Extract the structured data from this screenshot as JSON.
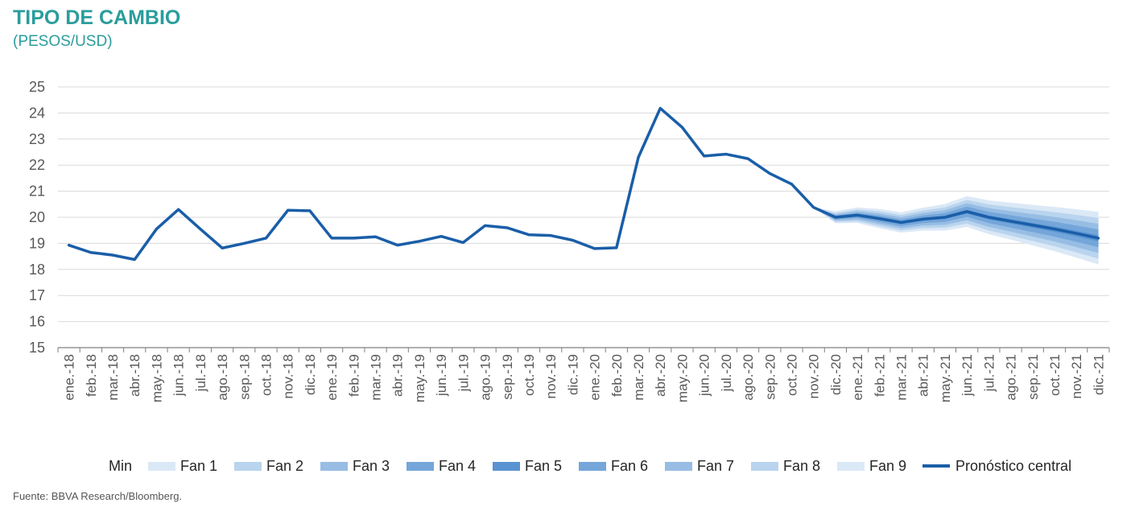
{
  "header": {
    "title": "TIPO DE CAMBIO",
    "subtitle": "(PESOS/USD)"
  },
  "footer": {
    "source": "Fuente: BBVA Research/Bloomberg."
  },
  "chart_data": {
    "type": "line",
    "title": "TIPO DE CAMBIO",
    "subtitle": "(PESOS/USD)",
    "ylim": [
      15,
      25
    ],
    "yticks": [
      15,
      16,
      17,
      18,
      19,
      20,
      21,
      22,
      23,
      24,
      25
    ],
    "grid": true,
    "legend_position": "bottom",
    "categories": [
      "ene.-18",
      "feb.-18",
      "mar.-18",
      "abr.-18",
      "may.-18",
      "jun.-18",
      "jul.-18",
      "ago.-18",
      "sep.-18",
      "oct.-18",
      "nov.-18",
      "dic.-18",
      "ene.-19",
      "feb.-19",
      "mar.-19",
      "abr.-19",
      "may.-19",
      "jun.-19",
      "jul.-19",
      "ago.-19",
      "sep.-19",
      "oct.-19",
      "nov.-19",
      "dic.-19",
      "ene.-20",
      "feb.-20",
      "mar.-20",
      "abr.-20",
      "may.-20",
      "jun.-20",
      "jul.-20",
      "ago.-20",
      "sep.-20",
      "oct.-20",
      "nov.-20",
      "dic.-20",
      "ene.-21",
      "feb.-21",
      "mar.-21",
      "abr.-21",
      "may.-21",
      "jun.-21",
      "jul.-21",
      "ago.-21",
      "sep.-21",
      "oct.-21",
      "nov.-21",
      "dic.-21"
    ],
    "series": [
      {
        "name": "Pronóstico central",
        "color": "#1a5ea8",
        "values": [
          18.93,
          18.65,
          18.55,
          18.38,
          19.55,
          20.3,
          19.55,
          18.82,
          19.0,
          19.2,
          20.27,
          20.25,
          19.2,
          19.2,
          19.25,
          18.93,
          19.08,
          19.27,
          19.03,
          19.68,
          19.6,
          19.33,
          19.3,
          19.12,
          18.8,
          18.83,
          22.3,
          24.18,
          23.45,
          22.35,
          22.42,
          22.25,
          21.68,
          21.27,
          20.38,
          20.0,
          20.08,
          19.95,
          19.8,
          19.93,
          20.0,
          20.22,
          20.0,
          19.85,
          19.7,
          19.55,
          19.38,
          19.2
        ]
      }
    ],
    "fan": {
      "start_index": 34,
      "legend_labels": [
        "Min",
        "Fan 1",
        "Fan 2",
        "Fan 3",
        "Fan 4",
        "Fan 5",
        "Fan 6",
        "Fan 7",
        "Fan 8",
        "Fan 9"
      ],
      "colors": [
        "#dbe8f6",
        "#b9d4ee",
        "#97bde4",
        "#74a6da",
        "#5a93d1",
        "#74a6da",
        "#97bde4",
        "#b9d4ee",
        "#dbe8f6"
      ],
      "spread": [
        0.0,
        0.22,
        0.29,
        0.36,
        0.38,
        0.43,
        0.5,
        0.58,
        0.64,
        0.7,
        0.77,
        0.84,
        0.92,
        1.0
      ]
    }
  }
}
